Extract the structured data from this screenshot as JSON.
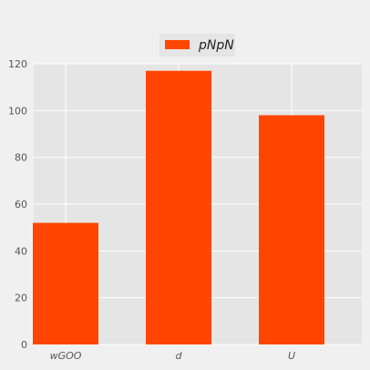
{
  "chart_data": {
    "type": "bar",
    "categories": [
      "wGOO",
      "d",
      "U"
    ],
    "series": [
      {
        "name": "pNpN",
        "values": [
          52,
          117,
          98
        ]
      }
    ],
    "ylim": [
      0,
      120
    ],
    "yticks": [
      0,
      20,
      40,
      60,
      80,
      100,
      120
    ],
    "grid": true,
    "legend": "top-center",
    "colors": {
      "bar": "#ff4500",
      "plot_bg": "#e5e5e5",
      "figure_bg": "#f0f0f0",
      "grid": "#ffffff"
    }
  }
}
